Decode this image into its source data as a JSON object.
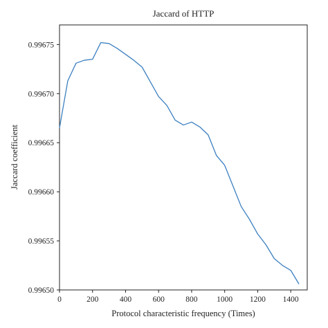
{
  "chart_data": {
    "type": "line",
    "title": "Jaccard of HTTP",
    "xlabel": "Protocol characteristic frequency (Times)",
    "ylabel": "Jaccard coefficient",
    "xlim": [
      0,
      1500
    ],
    "ylim": [
      0.9965,
      0.99677
    ],
    "xticks": [
      0,
      200,
      400,
      600,
      800,
      1000,
      1200,
      1400
    ],
    "xtick_labels": [
      "0",
      "200",
      "400",
      "600",
      "800",
      "1000",
      "1200",
      "1400"
    ],
    "yticks": [
      0.9965,
      0.99655,
      0.9966,
      0.99665,
      0.9967,
      0.99675
    ],
    "ytick_labels": [
      "0.99650",
      "0.99655",
      "0.99660",
      "0.99665",
      "0.99670",
      "0.99675"
    ],
    "grid": false,
    "series": [
      {
        "color": "#3b7fc0",
        "x": [
          0,
          50,
          100,
          150,
          200,
          250,
          300,
          350,
          400,
          450,
          500,
          550,
          600,
          650,
          700,
          750,
          800,
          850,
          900,
          950,
          1000,
          1050,
          1100,
          1150,
          1200,
          1250,
          1300,
          1350,
          1400,
          1450
        ],
        "y": [
          0.996665,
          0.996713,
          0.996731,
          0.996734,
          0.996735,
          0.996752,
          0.996751,
          0.996746,
          0.99674,
          0.996734,
          0.996727,
          0.996712,
          0.996697,
          0.996688,
          0.996673,
          0.996668,
          0.996671,
          0.996666,
          0.996658,
          0.996637,
          0.996627,
          0.996606,
          0.996585,
          0.996572,
          0.996557,
          0.996546,
          0.996532,
          0.996525,
          0.99652,
          0.996506
        ]
      }
    ]
  }
}
